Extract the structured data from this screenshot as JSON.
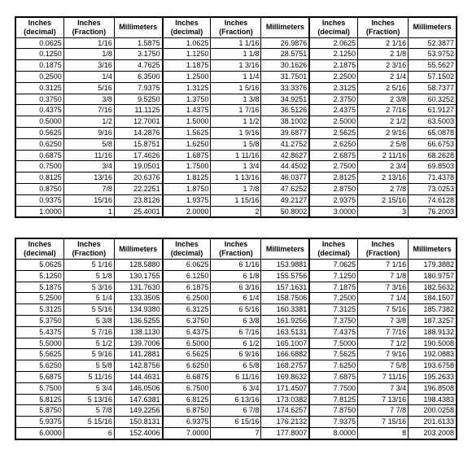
{
  "headers": {
    "dec": "Inches (decimal)",
    "frac": "Inches (Fraction)",
    "mm": "Millimeters"
  },
  "tables": [
    {
      "rows": [
        [
          "0.0625",
          "1/16",
          "1.5875",
          "1.0625",
          "1  1/16",
          "26.9876",
          "2.0625",
          "2  1/16",
          "52.3877"
        ],
        [
          "0.1250",
          "1/8",
          "3.1750",
          "1.1250",
          "1  1/8",
          "28.5751",
          "2.1250",
          "2  1/8",
          "53.9752"
        ],
        [
          "0.1875",
          "3/16",
          "4.7625",
          "1.1875",
          "1  3/16",
          "30.1626",
          "2.1875",
          "2  3/16",
          "55.5627"
        ],
        [
          "0.2500",
          "1/4",
          "6.3500",
          "1.2500",
          "1  1/4",
          "31.7501",
          "2.2500",
          "2  1/4",
          "57.1502"
        ],
        [
          "0.3125",
          "5/16",
          "7.9375",
          "1.3125",
          "1  5/16",
          "33.3376",
          "2.3125",
          "2  5/16",
          "58.7377"
        ],
        [
          "0.3750",
          "3/8",
          "9.5250",
          "1.3750",
          "1  3/8",
          "34.9251",
          "2.3750",
          "2  3/8",
          "60.3252"
        ],
        [
          "0.4375",
          "7/16",
          "11.1125",
          "1.4375",
          "1  7/16",
          "36.5126",
          "2.4375",
          "2  7/16",
          "61.9127"
        ],
        [
          "0.5000",
          "1/2",
          "12.7001",
          "1.5000",
          "1  1/2",
          "38.1002",
          "2.5000",
          "2  1/2",
          "63.5003"
        ],
        [
          "0.5625",
          "9/16",
          "14.2876",
          "1.5625",
          "1  9/16",
          "39.6877",
          "2.5625",
          "2  9/16",
          "65.0878"
        ],
        [
          "0.6250",
          "5/8",
          "15.8751",
          "1.6250",
          "1  5/8",
          "41.2752",
          "2.6250",
          "2  5/8",
          "66.6753"
        ],
        [
          "0.6875",
          "11/16",
          "17.4626",
          "1.6875",
          "1 11/16",
          "42.8627",
          "2.6875",
          "2 11/16",
          "68.2628"
        ],
        [
          "0.7500",
          "3/4",
          "19.0501",
          "1.7500",
          "1  3/4",
          "44.4502",
          "2.7500",
          "2  3/4",
          "69.8503"
        ],
        [
          "0.8125",
          "13/16",
          "20.6376",
          "1.8125",
          "1 13/16",
          "46.0377",
          "2.8125",
          "2 13/16",
          "71.4378"
        ],
        [
          "0.8750",
          "7/8",
          "22.2251",
          "1.8750",
          "1  7/8",
          "47.6252",
          "2.8750",
          "2  7/8",
          "73.0253"
        ],
        [
          "0.9375",
          "15/16",
          "23.8126",
          "1.9375",
          "1 15/16",
          "49.2127",
          "2.9375",
          "2 15/16",
          "74.6128"
        ],
        [
          "1.0000",
          "1",
          "25.4001",
          "2.0000",
          "2",
          "50.8002",
          "3.0000",
          "3",
          "76.2003"
        ]
      ]
    },
    {
      "rows": [
        [
          "5.0625",
          "5  1/16",
          "128.5880",
          "6.0625",
          "6  1/16",
          "153.9881",
          "7.0625",
          "7  1/16",
          "179.3882"
        ],
        [
          "5.1250",
          "5  1/8",
          "130.1755",
          "6.1250",
          "6  1/8",
          "155.5756",
          "7.1250",
          "7  1/8",
          "180.9757"
        ],
        [
          "5.1875",
          "5  3/16",
          "131.7630",
          "6.1875",
          "6  3/16",
          "157.1631",
          "7.1875",
          "7  3/16",
          "182.5632"
        ],
        [
          "5.2500",
          "5  1/4",
          "133.3505",
          "6.2500",
          "6  1/4",
          "158.7506",
          "7.2500",
          "7  1/4",
          "184.1507"
        ],
        [
          "5.3125",
          "5  5/16",
          "134.9380",
          "6.3125",
          "6  5/16",
          "160.3381",
          "7.3125",
          "7  5/16",
          "185.7382"
        ],
        [
          "5.3750",
          "5  3/8",
          "136.5255",
          "6.3750",
          "6  3/8",
          "161.9256",
          "7.3750",
          "7  3/8",
          "187.3257"
        ],
        [
          "5.4375",
          "5  7/16",
          "138.1130",
          "6.4375",
          "6  7/16",
          "163.5131",
          "7.4375",
          "7  7/16",
          "188.9132"
        ],
        [
          "5.5000",
          "5  1/2",
          "139.7006",
          "6.5000",
          "6  1/2",
          "165.1007",
          "7.5000",
          "7  1/2",
          "190.5008"
        ],
        [
          "5.5625",
          "5  9/16",
          "141.2881",
          "6.5625",
          "6  9/16",
          "166.6882",
          "7.5625",
          "7  9/16",
          "192.0883"
        ],
        [
          "5.6250",
          "5  5/8",
          "142.8756",
          "6.6250",
          "6  5/8",
          "168.2757",
          "7.6250",
          "7  5/8",
          "193.6758"
        ],
        [
          "5.6875",
          "5 11/16",
          "144.4631",
          "6.6875",
          "6 11/16",
          "169.8632",
          "7.6875",
          "7 11/16",
          "195.2633"
        ],
        [
          "5.7500",
          "5  3/4",
          "146.0506",
          "6.7500",
          "6  3/4",
          "171.4507",
          "7.7500",
          "7  3/4",
          "196.8508"
        ],
        [
          "5.8125",
          "5 13/16",
          "147.6381",
          "6.8125",
          "6 13/16",
          "173.0382",
          "7.8125",
          "7 13/16",
          "198.4383"
        ],
        [
          "5.8750",
          "5  7/8",
          "149.2256",
          "6.8750",
          "6  7/8",
          "174.6257",
          "7.8750",
          "7  7/8",
          "200.0258"
        ],
        [
          "5.9375",
          "5 15/16",
          "150.8131",
          "6.9375",
          "6 15/16",
          "176.2132",
          "7.9375",
          "7 15/16",
          "201.6133"
        ],
        [
          "6.0000",
          "6",
          "152.4006",
          "7.0000",
          "7",
          "177.8007",
          "8.0000",
          "8",
          "203.2008"
        ]
      ]
    }
  ]
}
